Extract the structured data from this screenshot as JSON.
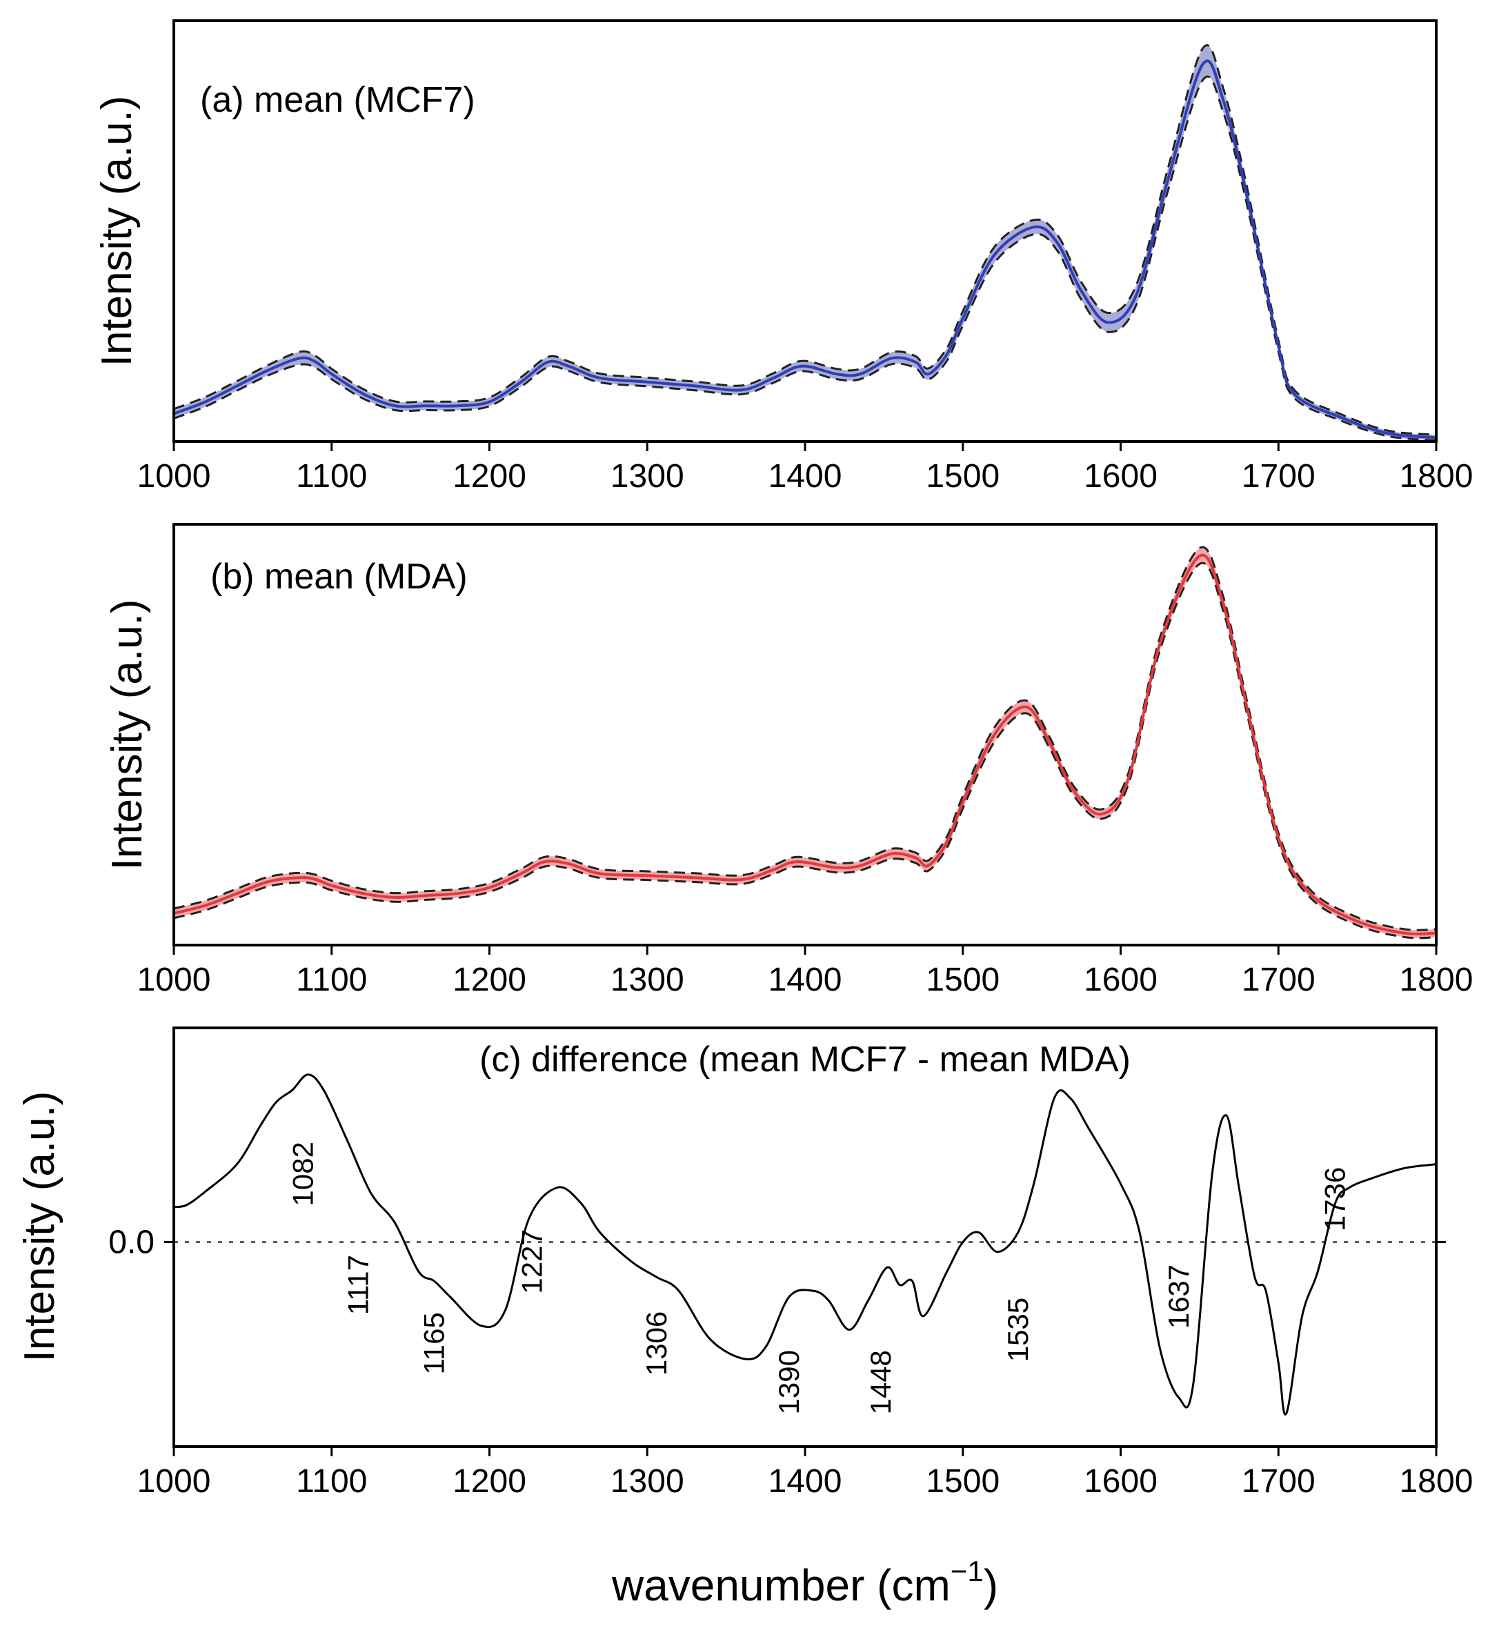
{
  "chart_data": [
    {
      "panel": "a",
      "type": "line",
      "title": "(a) mean (MCF7)",
      "xlabel": "",
      "ylabel": "Intensity (a.u.)",
      "xlim": [
        1000,
        1800
      ],
      "ylim": [
        0,
        1.06
      ],
      "xticks": [
        1000,
        1100,
        1200,
        1300,
        1400,
        1500,
        1600,
        1700,
        1800
      ],
      "line_color": "#2f3fb8",
      "band_color": "#a9acd4",
      "std_line_color": "#222222",
      "x": [
        1000,
        1020,
        1040,
        1060,
        1080,
        1090,
        1100,
        1120,
        1140,
        1160,
        1180,
        1200,
        1220,
        1237,
        1250,
        1270,
        1300,
        1330,
        1360,
        1380,
        1398,
        1420,
        1435,
        1455,
        1470,
        1478,
        1490,
        1500,
        1520,
        1545,
        1560,
        1575,
        1592,
        1610,
        1630,
        1652,
        1665,
        1680,
        1700,
        1710,
        1740,
        1770,
        1800
      ],
      "mean": [
        0.07,
        0.1,
        0.14,
        0.18,
        0.21,
        0.2,
        0.17,
        0.12,
        0.09,
        0.09,
        0.09,
        0.1,
        0.15,
        0.2,
        0.19,
        0.16,
        0.15,
        0.14,
        0.13,
        0.16,
        0.19,
        0.17,
        0.17,
        0.21,
        0.2,
        0.17,
        0.22,
        0.31,
        0.47,
        0.54,
        0.5,
        0.38,
        0.3,
        0.37,
        0.66,
        0.95,
        0.86,
        0.62,
        0.24,
        0.12,
        0.06,
        0.02,
        0.01
      ],
      "std": [
        0.012,
        0.012,
        0.012,
        0.013,
        0.016,
        0.015,
        0.013,
        0.012,
        0.011,
        0.011,
        0.011,
        0.011,
        0.012,
        0.013,
        0.012,
        0.011,
        0.011,
        0.011,
        0.011,
        0.012,
        0.013,
        0.013,
        0.013,
        0.015,
        0.015,
        0.014,
        0.016,
        0.018,
        0.02,
        0.018,
        0.02,
        0.022,
        0.024,
        0.025,
        0.028,
        0.04,
        0.03,
        0.022,
        0.014,
        0.01,
        0.008,
        0.007,
        0.007
      ]
    },
    {
      "panel": "b",
      "type": "line",
      "title": "(b) mean (MDA)",
      "xlabel": "",
      "ylabel": "Intensity (a.u.)",
      "xlim": [
        1000,
        1800
      ],
      "ylim": [
        0,
        1.06
      ],
      "xticks": [
        1000,
        1100,
        1200,
        1300,
        1400,
        1500,
        1600,
        1700,
        1800
      ],
      "line_color": "#e0393e",
      "band_color": "#f2a6a8",
      "std_line_color": "#222222",
      "x": [
        1000,
        1020,
        1040,
        1060,
        1080,
        1090,
        1100,
        1120,
        1140,
        1160,
        1180,
        1200,
        1220,
        1235,
        1250,
        1270,
        1300,
        1330,
        1360,
        1380,
        1395,
        1420,
        1435,
        1455,
        1470,
        1478,
        1490,
        1500,
        1520,
        1540,
        1555,
        1570,
        1588,
        1605,
        1625,
        1650,
        1665,
        1680,
        1700,
        1720,
        1750,
        1780,
        1800
      ],
      "mean": [
        0.08,
        0.1,
        0.13,
        0.16,
        0.17,
        0.165,
        0.15,
        0.13,
        0.12,
        0.125,
        0.13,
        0.145,
        0.18,
        0.21,
        0.205,
        0.18,
        0.175,
        0.17,
        0.165,
        0.19,
        0.21,
        0.195,
        0.2,
        0.23,
        0.22,
        0.2,
        0.26,
        0.36,
        0.53,
        0.6,
        0.51,
        0.39,
        0.33,
        0.42,
        0.76,
        0.98,
        0.86,
        0.6,
        0.27,
        0.13,
        0.06,
        0.03,
        0.03
      ],
      "std": [
        0.012,
        0.012,
        0.012,
        0.012,
        0.012,
        0.012,
        0.012,
        0.011,
        0.011,
        0.011,
        0.011,
        0.011,
        0.012,
        0.012,
        0.012,
        0.011,
        0.011,
        0.011,
        0.011,
        0.011,
        0.012,
        0.012,
        0.012,
        0.013,
        0.013,
        0.013,
        0.014,
        0.016,
        0.018,
        0.016,
        0.014,
        0.012,
        0.012,
        0.014,
        0.016,
        0.02,
        0.018,
        0.016,
        0.012,
        0.01,
        0.01,
        0.01,
        0.01
      ]
    },
    {
      "panel": "c",
      "type": "line",
      "title": "(c) difference (mean MCF7 - mean MDA)",
      "xlabel": "wavenumber (cm",
      "xlabel_sup": "−1",
      "xlabel_end": ")",
      "ylabel": "Intensity (a.u.)",
      "xlim": [
        1000,
        1800
      ],
      "ylim": [
        -1.05,
        1.1
      ],
      "xticks": [
        1000,
        1100,
        1200,
        1300,
        1400,
        1500,
        1600,
        1700,
        1800
      ],
      "yticks": [
        0.0
      ],
      "ytick_labels": [
        "0.0"
      ],
      "zero_line": true,
      "line_color": "#000000",
      "x": [
        1000,
        1008,
        1020,
        1040,
        1055,
        1065,
        1075,
        1085,
        1095,
        1110,
        1125,
        1140,
        1155,
        1165,
        1175,
        1195,
        1210,
        1225,
        1243,
        1258,
        1270,
        1290,
        1306,
        1320,
        1340,
        1362,
        1375,
        1390,
        1405,
        1415,
        1428,
        1440,
        1452,
        1460,
        1468,
        1475,
        1490,
        1500,
        1510,
        1522,
        1535,
        1545,
        1558,
        1568,
        1580,
        1600,
        1612,
        1625,
        1637,
        1646,
        1658,
        1667,
        1675,
        1685,
        1692,
        1700,
        1705,
        1715,
        1725,
        1736,
        1745,
        1760,
        1780,
        1800
      ],
      "y": [
        0.18,
        0.19,
        0.26,
        0.4,
        0.6,
        0.72,
        0.78,
        0.86,
        0.78,
        0.52,
        0.25,
        0.1,
        -0.15,
        -0.2,
        -0.28,
        -0.43,
        -0.35,
        0.12,
        0.28,
        0.2,
        0.05,
        -0.1,
        -0.18,
        -0.25,
        -0.5,
        -0.6,
        -0.54,
        -0.28,
        -0.25,
        -0.3,
        -0.45,
        -0.3,
        -0.13,
        -0.22,
        -0.2,
        -0.38,
        -0.15,
        0.0,
        0.05,
        -0.05,
        0.05,
        0.3,
        0.74,
        0.74,
        0.58,
        0.3,
        0.05,
        -0.55,
        -0.8,
        -0.73,
        0.35,
        0.65,
        0.28,
        -0.18,
        -0.25,
        -0.62,
        -0.88,
        -0.38,
        -0.15,
        0.2,
        0.28,
        0.33,
        0.38,
        0.4
      ],
      "annotations": [
        {
          "label": "1082",
          "x": 1082,
          "y": 0.35
        },
        {
          "label": "1117",
          "x": 1117,
          "y": -0.22
        },
        {
          "label": "1165",
          "x": 1165,
          "y": -0.52
        },
        {
          "label": "1227",
          "x": 1227,
          "y": -0.1
        },
        {
          "label": "1306",
          "x": 1306,
          "y": -0.52
        },
        {
          "label": "1390",
          "x": 1390,
          "y": -0.72
        },
        {
          "label": "1448",
          "x": 1448,
          "y": -0.72
        },
        {
          "label": "1535",
          "x": 1535,
          "y": -0.45
        },
        {
          "label": "1637",
          "x": 1637,
          "y": -0.28
        },
        {
          "label": "1736",
          "x": 1736,
          "y": 0.22
        }
      ]
    }
  ]
}
